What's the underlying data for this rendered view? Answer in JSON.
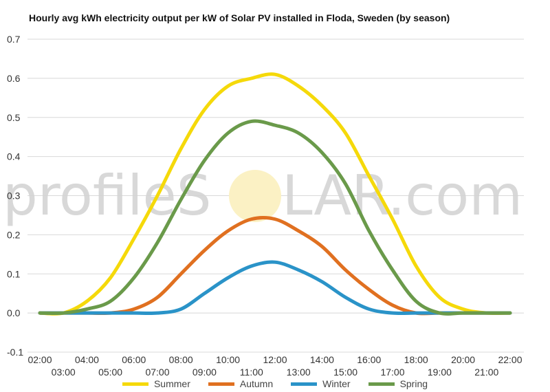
{
  "chart_data": {
    "type": "line",
    "title": "Hourly avg kWh electricity output per kW of Solar PV installed in Floda, Sweden (by season)",
    "xlabel": "",
    "ylabel": "",
    "ylim": [
      -0.1,
      0.7
    ],
    "yticks": [
      "-0.1",
      "0.0",
      "0.1",
      "0.2",
      "0.3",
      "0.4",
      "0.5",
      "0.6",
      "0.7"
    ],
    "grid": true,
    "legend": "bottom",
    "categories": [
      "02:00",
      "03:00",
      "04:00",
      "05:00",
      "06:00",
      "07:00",
      "08:00",
      "09:00",
      "10:00",
      "11:00",
      "12:00",
      "13:00",
      "14:00",
      "15:00",
      "16:00",
      "17:00",
      "18:00",
      "19:00",
      "20:00",
      "21:00",
      "22:00"
    ],
    "series": [
      {
        "name": "Summer",
        "color": "#f5d90a",
        "values": [
          0.0,
          0.0,
          0.03,
          0.09,
          0.19,
          0.3,
          0.42,
          0.52,
          0.58,
          0.6,
          0.61,
          0.58,
          0.53,
          0.46,
          0.35,
          0.24,
          0.12,
          0.04,
          0.01,
          0.0,
          0.0
        ]
      },
      {
        "name": "Autumn",
        "color": "#e07020",
        "values": [
          0.0,
          0.0,
          0.0,
          0.0,
          0.01,
          0.04,
          0.1,
          0.16,
          0.21,
          0.24,
          0.24,
          0.21,
          0.17,
          0.11,
          0.06,
          0.02,
          0.0,
          0.0,
          0.0,
          0.0,
          0.0
        ]
      },
      {
        "name": "Winter",
        "color": "#2a93c8",
        "values": [
          0.0,
          0.0,
          0.0,
          0.0,
          0.0,
          0.0,
          0.01,
          0.05,
          0.09,
          0.12,
          0.13,
          0.11,
          0.08,
          0.04,
          0.01,
          0.0,
          0.0,
          0.0,
          0.0,
          0.0,
          0.0
        ]
      },
      {
        "name": "Spring",
        "color": "#6a9a4a",
        "values": [
          0.0,
          0.0,
          0.01,
          0.03,
          0.09,
          0.18,
          0.29,
          0.39,
          0.46,
          0.49,
          0.48,
          0.46,
          0.41,
          0.33,
          0.21,
          0.11,
          0.03,
          0.0,
          0.0,
          0.0,
          0.0
        ]
      }
    ]
  },
  "watermark": {
    "left": "profileS",
    "right": "LAR.com"
  }
}
